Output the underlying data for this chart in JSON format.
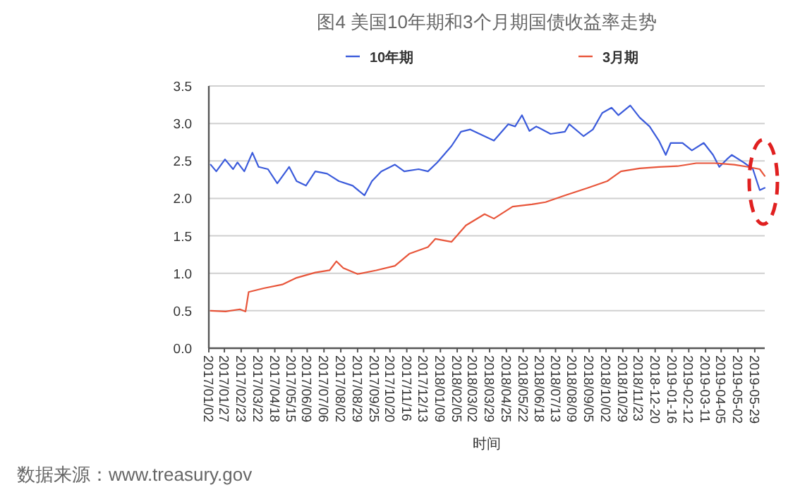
{
  "chart_data": {
    "type": "line",
    "title": "图4 美国10年期和3个月期国债收益率走势",
    "xlabel": "时间",
    "annotations": [
      "数据来源：www.treasury.gov"
    ],
    "xlim": [
      "2017-01-02",
      "2019-06-14"
    ],
    "ylim": [
      0,
      3.5
    ],
    "yticks": [
      {
        "value": 0,
        "label": "0.0"
      },
      {
        "value": 0.5,
        "label": "0.5"
      },
      {
        "value": 1,
        "label": "1.0"
      },
      {
        "value": 1.5,
        "label": "1.5"
      },
      {
        "value": 2,
        "label": "2.0"
      },
      {
        "value": 2.5,
        "label": "2.5"
      },
      {
        "value": 3,
        "label": "3.0"
      },
      {
        "value": 3.5,
        "label": "3.5"
      }
    ],
    "xticks": [
      {
        "value": "2017-01-02",
        "label": "2017/01/02"
      },
      {
        "value": "2017-01-27",
        "label": "2017/01/27"
      },
      {
        "value": "2017-02-23",
        "label": "2017/02/23"
      },
      {
        "value": "2017-03-22",
        "label": "2017/03/22"
      },
      {
        "value": "2017-04-18",
        "label": "2017/04/18"
      },
      {
        "value": "2017-05-15",
        "label": "2017/05/15"
      },
      {
        "value": "2017-06-09",
        "label": "2017/06/09"
      },
      {
        "value": "2017-07-06",
        "label": "2017/07/06"
      },
      {
        "value": "2017-08-02",
        "label": "2017/08/02"
      },
      {
        "value": "2017-08-29",
        "label": "2017/08/29"
      },
      {
        "value": "2017-09-25",
        "label": "2017/09/25"
      },
      {
        "value": "2017-10-20",
        "label": "2017/10/20"
      },
      {
        "value": "2017-11-16",
        "label": "2017/11/16"
      },
      {
        "value": "2017-12-13",
        "label": "2017/12/13"
      },
      {
        "value": "2018-01-09",
        "label": "2018/01/09"
      },
      {
        "value": "2018-02-05",
        "label": "2018/02/05"
      },
      {
        "value": "2018-03-02",
        "label": "2018/03/02"
      },
      {
        "value": "2018-03-29",
        "label": "2018/03/29"
      },
      {
        "value": "2018-04-25",
        "label": "2018/04/25"
      },
      {
        "value": "2018-05-22",
        "label": "2018/05/22"
      },
      {
        "value": "2018-06-18",
        "label": "2018/06/18"
      },
      {
        "value": "2018-07-13",
        "label": "2018/07/13"
      },
      {
        "value": "2018-08-09",
        "label": "2018/08/09"
      },
      {
        "value": "2018-09-05",
        "label": "2018/09/05"
      },
      {
        "value": "2018-10-02",
        "label": "2018/10/02"
      },
      {
        "value": "2018-10-29",
        "label": "2018/10/29"
      },
      {
        "value": "2018-11-23",
        "label": "2018/11/23"
      },
      {
        "value": "2018-12-20",
        "label": "2018-12-20"
      },
      {
        "value": "2019-01-16",
        "label": "2019-01-16"
      },
      {
        "value": "2019-02-12",
        "label": "2019-02-12"
      },
      {
        "value": "2019-03-11",
        "label": "2019-03-11"
      },
      {
        "value": "2019-04-05",
        "label": "2019-04-05"
      },
      {
        "value": "2019-05-02",
        "label": "2019-05-02"
      },
      {
        "value": "2019-05-29",
        "label": "2019-05-29"
      }
    ],
    "grid": "y",
    "legend": "top",
    "marker": "none",
    "line_style": "solid",
    "series": [
      {
        "name": "10年期",
        "color": "#3b5bdb",
        "x": [
          "2017-01-05",
          "2017-01-14",
          "2017-01-28",
          "2017-02-10",
          "2017-02-17",
          "2017-02-28",
          "2017-03-13",
          "2017-03-23",
          "2017-04-07",
          "2017-04-22",
          "2017-05-11",
          "2017-05-23",
          "2017-06-07",
          "2017-06-22",
          "2017-07-11",
          "2017-07-30",
          "2017-08-21",
          "2017-09-09",
          "2017-09-21",
          "2017-10-06",
          "2017-10-28",
          "2017-11-12",
          "2017-12-05",
          "2017-12-20",
          "2018-01-04",
          "2018-01-27",
          "2018-02-11",
          "2018-02-26",
          "2018-03-13",
          "2018-04-05",
          "2018-04-28",
          "2018-05-09",
          "2018-05-20",
          "2018-06-01",
          "2018-06-12",
          "2018-07-05",
          "2018-07-28",
          "2018-08-04",
          "2018-08-27",
          "2018-09-11",
          "2018-09-26",
          "2018-10-11",
          "2018-10-22",
          "2018-11-10",
          "2018-11-25",
          "2018-12-11",
          "2018-12-26",
          "2019-01-06",
          "2019-01-14",
          "2019-02-02",
          "2019-02-17",
          "2019-03-08",
          "2019-03-23",
          "2019-04-02",
          "2019-04-14",
          "2019-04-22",
          "2019-05-11",
          "2019-05-26",
          "2019-06-06",
          "2019-06-14"
        ],
        "values": [
          2.45,
          2.36,
          2.52,
          2.39,
          2.48,
          2.36,
          2.61,
          2.42,
          2.39,
          2.2,
          2.42,
          2.23,
          2.17,
          2.36,
          2.33,
          2.23,
          2.17,
          2.04,
          2.23,
          2.36,
          2.45,
          2.36,
          2.39,
          2.36,
          2.48,
          2.7,
          2.89,
          2.92,
          2.86,
          2.77,
          2.99,
          2.96,
          3.11,
          2.9,
          2.96,
          2.86,
          2.89,
          2.99,
          2.83,
          2.92,
          3.14,
          3.21,
          3.11,
          3.24,
          3.08,
          2.96,
          2.77,
          2.58,
          2.74,
          2.74,
          2.64,
          2.74,
          2.58,
          2.42,
          2.52,
          2.58,
          2.48,
          2.39,
          2.11,
          2.14
        ]
      },
      {
        "name": "3月期",
        "color": "#e8553a",
        "x": [
          "2017-01-05",
          "2017-01-29",
          "2017-02-21",
          "2017-03-02",
          "2017-03-07",
          "2017-03-31",
          "2017-04-30",
          "2017-05-23",
          "2017-06-22",
          "2017-07-15",
          "2017-07-26",
          "2017-08-06",
          "2017-08-29",
          "2017-09-28",
          "2017-10-28",
          "2017-11-20",
          "2017-12-20",
          "2018-01-01",
          "2018-01-27",
          "2018-02-19",
          "2018-03-21",
          "2018-04-05",
          "2018-05-05",
          "2018-06-05",
          "2018-06-27",
          "2018-07-28",
          "2018-09-03",
          "2018-10-04",
          "2018-10-26",
          "2018-11-25",
          "2018-12-26",
          "2019-01-25",
          "2019-02-24",
          "2019-03-26",
          "2019-04-26",
          "2019-05-18",
          "2019-06-06",
          "2019-06-14"
        ],
        "values": [
          0.5,
          0.49,
          0.52,
          0.49,
          0.75,
          0.8,
          0.85,
          0.94,
          1.01,
          1.04,
          1.16,
          1.07,
          0.99,
          1.04,
          1.1,
          1.26,
          1.35,
          1.46,
          1.42,
          1.64,
          1.79,
          1.73,
          1.89,
          1.92,
          1.95,
          2.04,
          2.14,
          2.23,
          2.36,
          2.4,
          2.42,
          2.43,
          2.47,
          2.47,
          2.45,
          2.42,
          2.39,
          2.3
        ]
      }
    ]
  }
}
